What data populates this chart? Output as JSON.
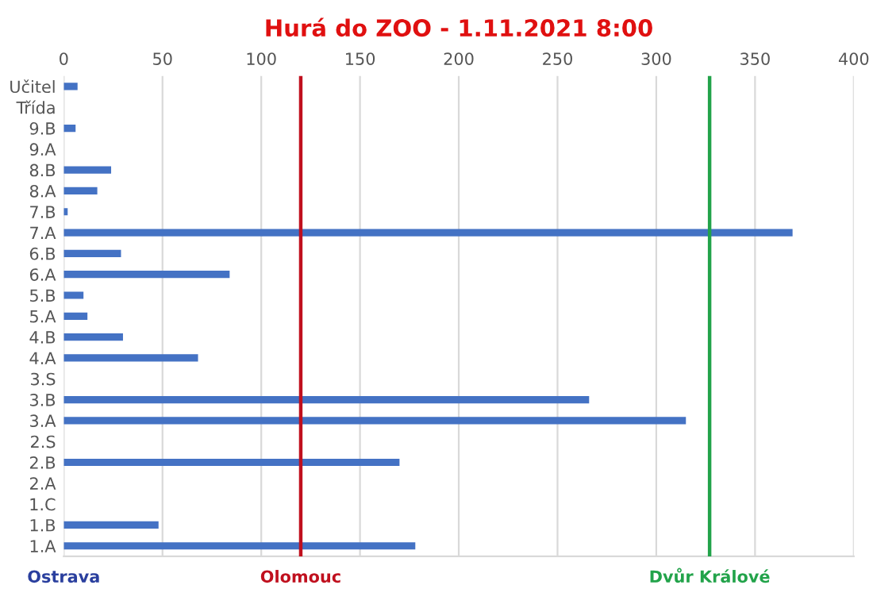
{
  "chart_data": {
    "type": "bar",
    "orientation": "horizontal",
    "title": "Hurá do ZOO - 1.11.2021 8:00",
    "categories": [
      "Učitel",
      "Třída",
      "9.B",
      "9.A",
      "8.B",
      "8.A",
      "7.B",
      "7.A",
      "6.B",
      "6.A",
      "5.B",
      "5.A",
      "4.B",
      "4.A",
      "3.S",
      "3.B",
      "3.A",
      "2.S",
      "2.B",
      "2.A",
      "1.C",
      "1.B",
      "1.A"
    ],
    "values": [
      7,
      0,
      6,
      0,
      24,
      17,
      2,
      369,
      29,
      84,
      10,
      12,
      30,
      68,
      0,
      266,
      315,
      0,
      170,
      0,
      0,
      48,
      178
    ],
    "color": "#4472c4",
    "xlim": [
      0,
      400
    ],
    "xticks": [
      0,
      50,
      100,
      150,
      200,
      250,
      300,
      350,
      400
    ],
    "grid": "x",
    "ref_lines": [
      {
        "axis": "x",
        "value": 120,
        "label": "Olomouc",
        "color": "#c0101e"
      },
      {
        "axis": "x",
        "value": 327,
        "label": "Dvůr Králové",
        "color": "#22a34a"
      }
    ],
    "annotations": [
      "Ostrava"
    ]
  }
}
